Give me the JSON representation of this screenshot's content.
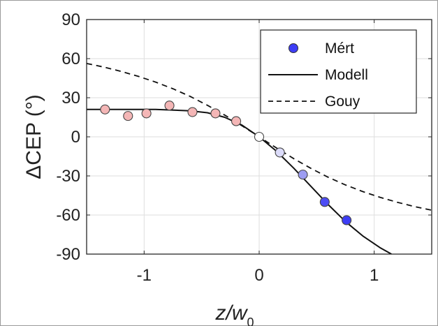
{
  "chart_data": {
    "type": "scatter",
    "title": "",
    "xlabel": {
      "main": "z/w",
      "sub": "0"
    },
    "ylabel": "ΔCEP (°)",
    "xlim": [
      -1.5,
      1.5
    ],
    "ylim": [
      -90,
      90
    ],
    "x_ticks": [
      -1,
      0,
      1
    ],
    "x_tick_labels": [
      "-1",
      "0",
      "1"
    ],
    "y_ticks": [
      90,
      60,
      30,
      0,
      -30,
      -60,
      -90
    ],
    "y_tick_labels": [
      "90",
      "60",
      "30",
      "0",
      "-30",
      "-60",
      "-90"
    ],
    "grid": true,
    "legend_position": "top-right",
    "series": [
      {
        "name": "Mért",
        "type": "scatter",
        "color": "#3d3df5",
        "x": [
          -1.34,
          -1.14,
          -0.98,
          -0.78,
          -0.58,
          -0.38,
          -0.2,
          0.0,
          0.18,
          0.38,
          0.57,
          0.76
        ],
        "y": [
          21,
          16,
          18,
          24,
          19,
          18,
          12,
          0,
          -12,
          -29,
          -50,
          -64
        ],
        "point_colors": [
          "#f4b6b6",
          "#f4b6b6",
          "#f4b6b6",
          "#f4b6b6",
          "#f4b6b6",
          "#f4b6b6",
          "#f4b6b6",
          "#ffffff",
          "#dcdcfa",
          "#9d9df2",
          "#4d4df5",
          "#3d3df5"
        ]
      },
      {
        "name": "Modell",
        "type": "line",
        "style": "solid",
        "color": "#111111",
        "x": [
          -1.5,
          -1.2,
          -0.9,
          -0.6,
          -0.45,
          -0.3,
          -0.15,
          0.0,
          0.15,
          0.3,
          0.45,
          0.6,
          0.75,
          0.9,
          1.05,
          1.15
        ],
        "y": [
          21,
          21,
          21,
          20,
          18.5,
          15,
          9,
          0,
          -11,
          -24,
          -38,
          -52,
          -65,
          -76,
          -85,
          -90
        ]
      },
      {
        "name": "Gouy",
        "type": "line",
        "style": "dashed",
        "color": "#111111",
        "x": [
          -1.5,
          -1.35,
          -1.2,
          -1.05,
          -0.9,
          -0.75,
          -0.6,
          -0.45,
          -0.3,
          -0.15,
          0.0,
          0.15,
          0.3,
          0.45,
          0.6,
          0.75,
          0.9,
          1.05,
          1.2,
          1.35,
          1.5
        ],
        "y": [
          56.3,
          53.5,
          50.2,
          46.4,
          42.0,
          36.9,
          31.0,
          24.2,
          16.7,
          8.5,
          0,
          -8.5,
          -16.7,
          -24.2,
          -31.0,
          -36.9,
          -42.0,
          -46.4,
          -50.2,
          -53.5,
          -56.3
        ]
      }
    ]
  }
}
